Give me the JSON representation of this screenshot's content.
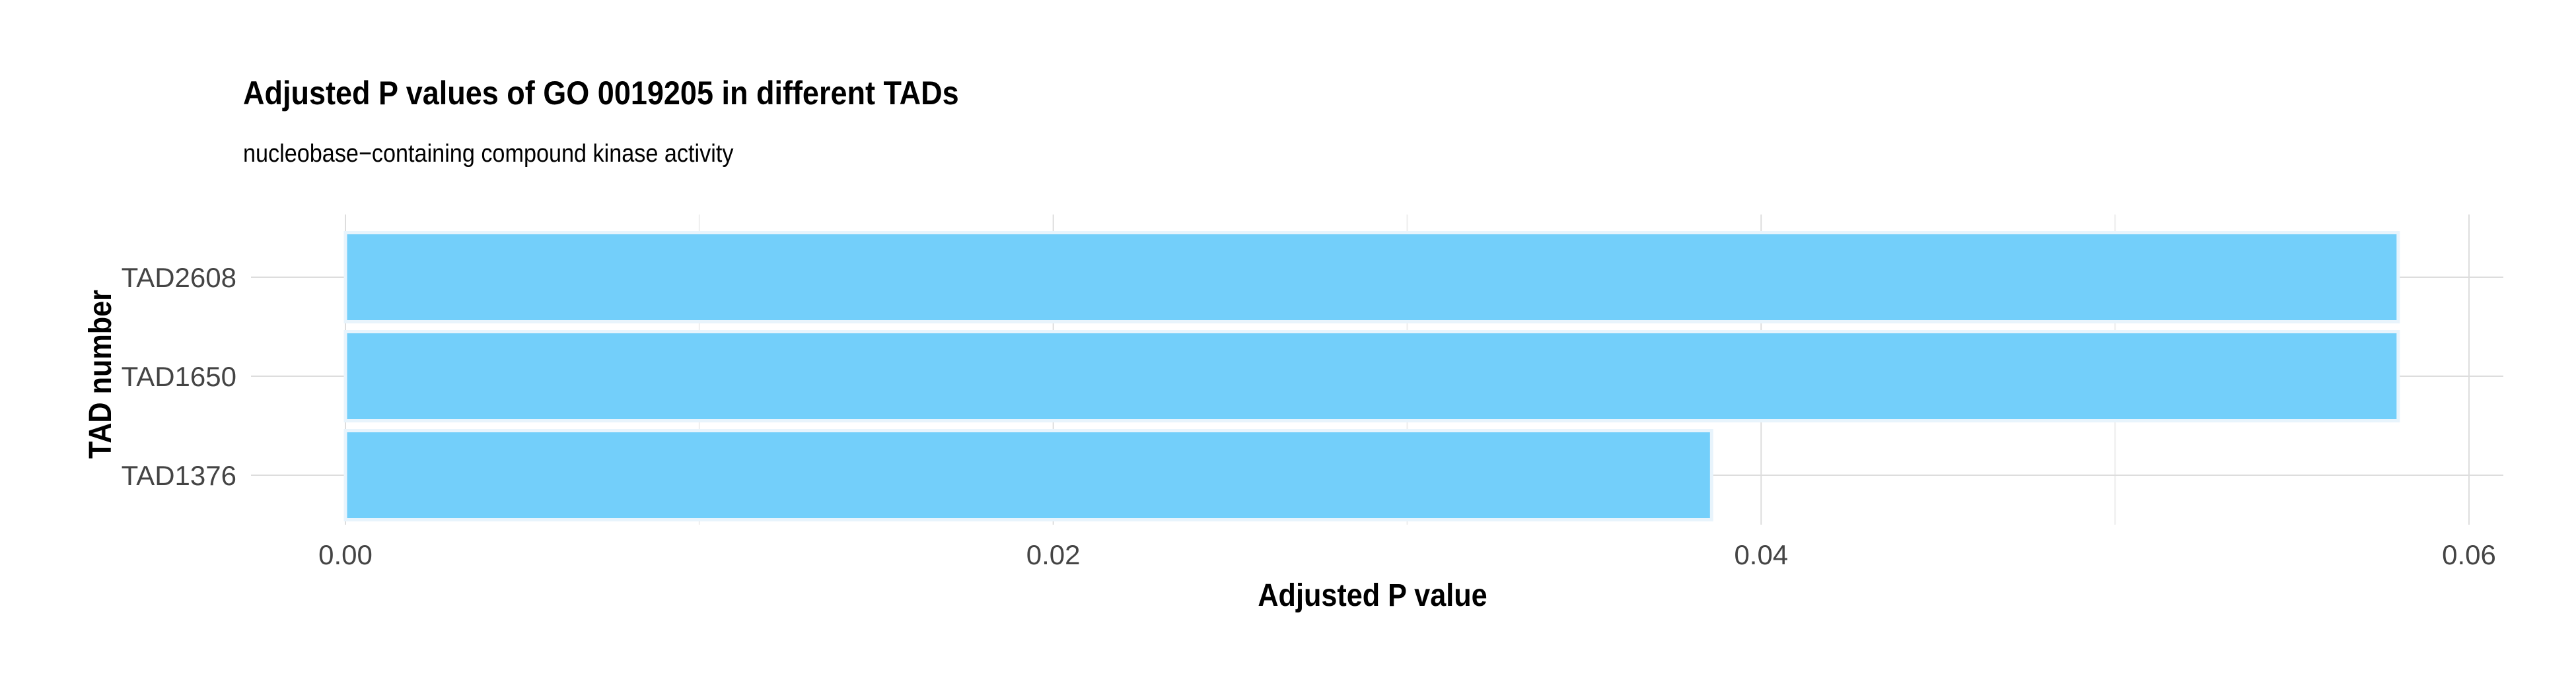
{
  "chart_data": {
    "type": "bar",
    "orientation": "horizontal",
    "title": "Adjusted P values of GO 0019205 in different TADs",
    "subtitle": "nucleobase−containing compound kinase activity",
    "xlabel": "Adjusted P value",
    "ylabel": "TAD number",
    "categories": [
      "TAD2608",
      "TAD1650",
      "TAD1376"
    ],
    "values": [
      0.058,
      0.058,
      0.0386
    ],
    "xlim": [
      0,
      0.0605
    ],
    "x_ticks": [
      0.0,
      0.02,
      0.04,
      0.06
    ],
    "x_tick_labels": [
      "0.00",
      "0.02",
      "0.04",
      "0.06"
    ],
    "grid": true,
    "legend": "none",
    "colors": {
      "bar_fill": "#73CFFA",
      "bar_outline": "#E8F4FC",
      "grid_major": "#DDDDDD",
      "grid_minor": "#EEEEEE",
      "text": "#000000",
      "tick_text": "#444444"
    }
  }
}
